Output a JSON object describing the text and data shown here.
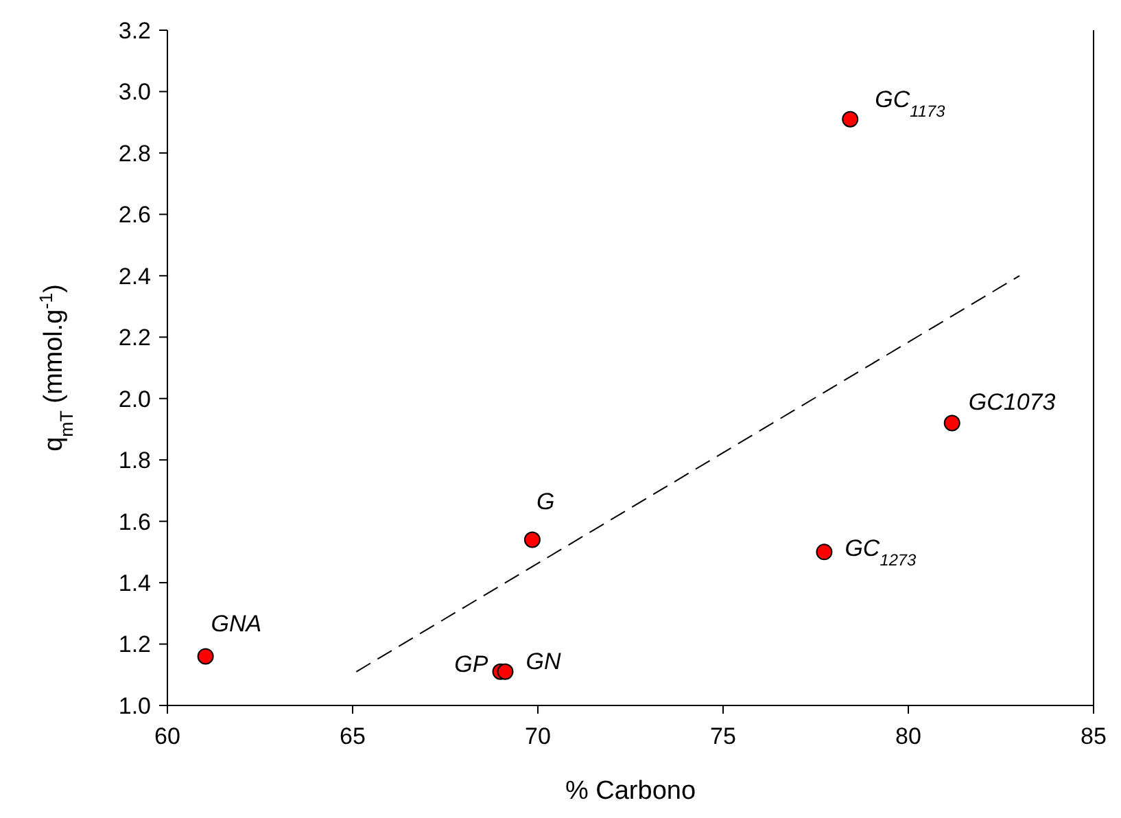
{
  "chart_data": {
    "type": "scatter",
    "xlabel": "% Carbono",
    "ylabel": "q$_{mT}$ (mmol.g$^{-1}$)",
    "xlim": [
      60,
      85
    ],
    "xticks": [
      60,
      65,
      70,
      75,
      80,
      85
    ],
    "ylim": [
      1.0,
      3.2
    ],
    "yticks": [
      {
        "value": 1.0,
        "label": "1.0"
      },
      {
        "value": 1.2,
        "label": "1.2"
      },
      {
        "value": 1.4,
        "label": "1.4"
      },
      {
        "value": 1.6,
        "label": "1.6"
      },
      {
        "value": 1.8,
        "label": "1.8"
      },
      {
        "value": 2.0,
        "label": "2.0"
      },
      {
        "value": 2.2,
        "label": "2.2"
      },
      {
        "value": 2.4,
        "label": "2.4"
      },
      {
        "value": 2.6,
        "label": "2.6"
      },
      {
        "value": 2.8,
        "label": "2.8"
      },
      {
        "value": 3.0,
        "label": "3.0"
      },
      {
        "value": 3.2,
        "label": "3.2"
      }
    ],
    "grid": false,
    "marker": "circle",
    "series": [
      {
        "color": "#ff0000",
        "x": [
          61.03,
          68.99,
          69.12,
          69.85,
          77.73,
          78.43,
          81.18
        ],
        "values": [
          1.16,
          1.11,
          1.11,
          1.54,
          1.5,
          2.91,
          1.92
        ]
      },
      {
        "type": "line",
        "color": "#000000",
        "line_style": "dashed",
        "marker": "none",
        "x": [
          65.1,
          83.0
        ],
        "values": [
          1.11,
          2.4
        ]
      }
    ],
    "annotations": [
      {
        "text": "GNA",
        "x": 61.03,
        "y": 1.16
      },
      {
        "text": "GP",
        "x": 68.99,
        "y": 1.11
      },
      {
        "text": "GN",
        "x": 69.12,
        "y": 1.11
      },
      {
        "text": "G",
        "x": 69.85,
        "y": 1.54
      },
      {
        "text": "GC$_{1173}$",
        "x": 78.43,
        "y": 2.91
      },
      {
        "text": "GC1073",
        "x": 81.18,
        "y": 1.92
      },
      {
        "text": "GC$_{1273}$",
        "x": 77.73,
        "y": 1.5
      }
    ]
  }
}
